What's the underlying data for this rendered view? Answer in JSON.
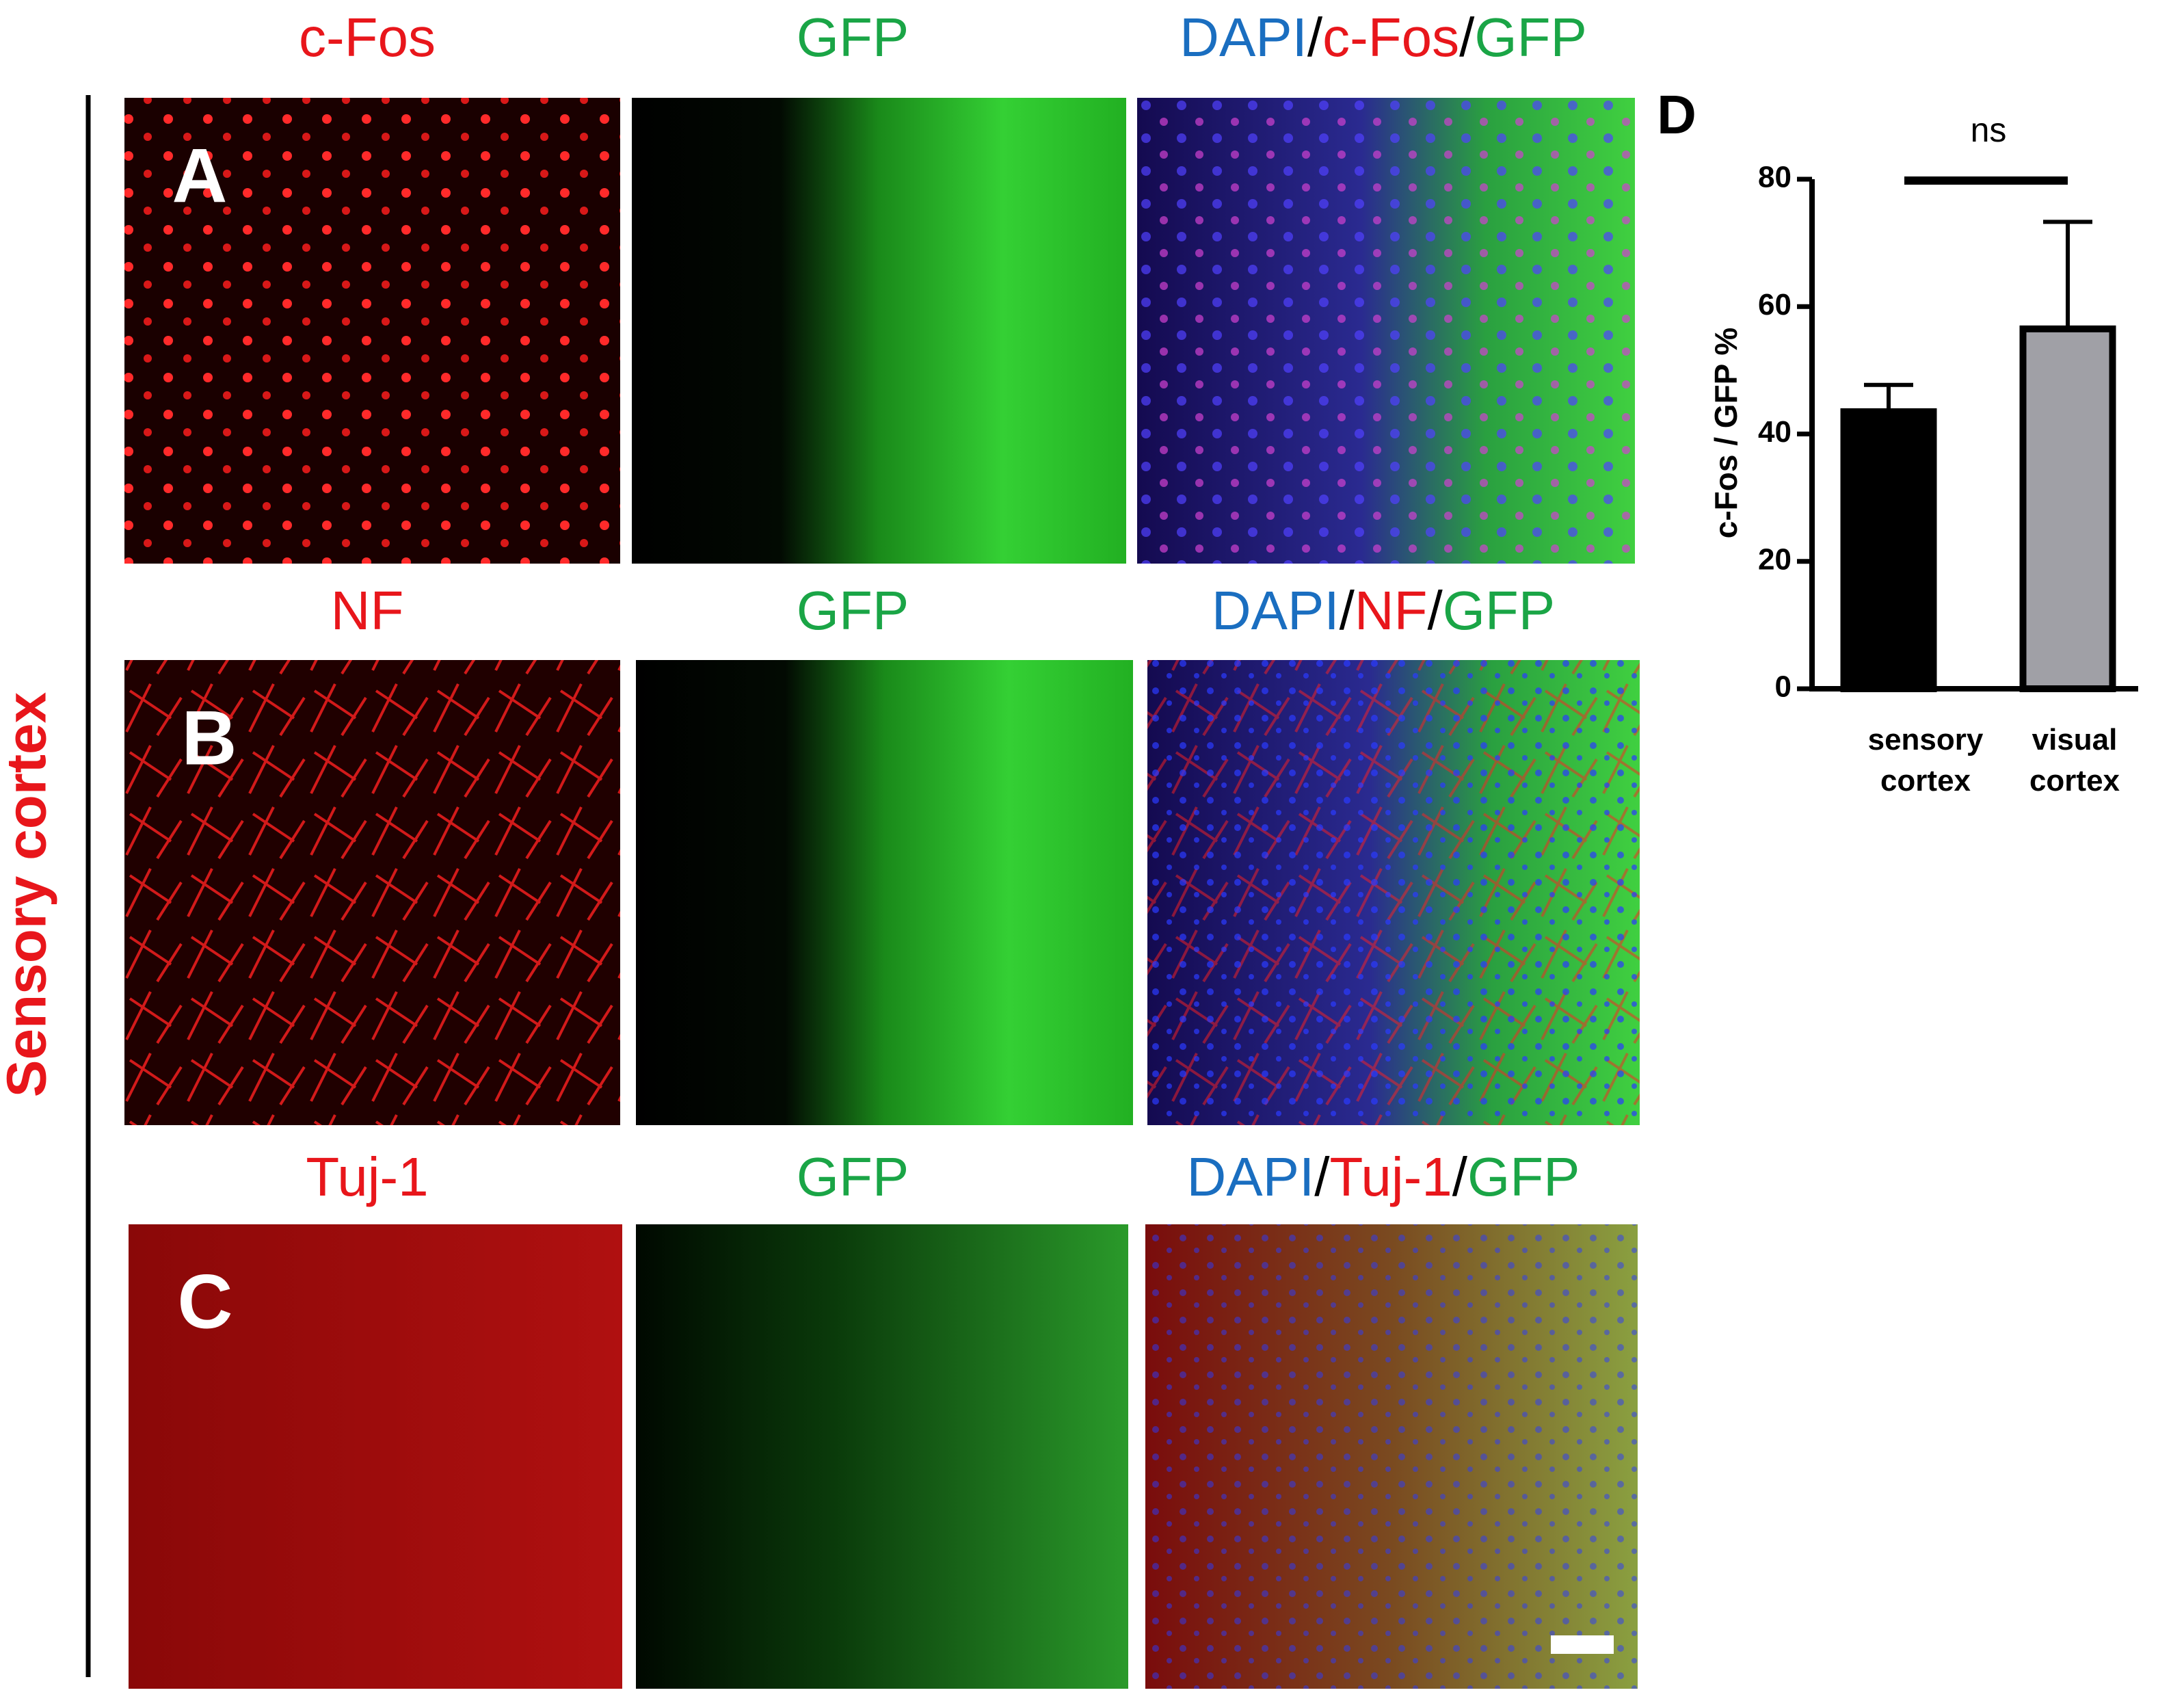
{
  "side_label": "Sensory cortex",
  "rows": [
    {
      "panel": "A",
      "headers": [
        [
          "c-Fos"
        ],
        [
          "GFP"
        ],
        [
          "DAPI",
          "/",
          "c-Fos",
          "/",
          "GFP"
        ]
      ]
    },
    {
      "panel": "B",
      "headers": [
        [
          "NF"
        ],
        [
          "GFP"
        ],
        [
          "DAPI",
          "/",
          "NF",
          "/",
          "GFP"
        ]
      ]
    },
    {
      "panel": "C",
      "headers": [
        [
          "Tuj-1"
        ],
        [
          "GFP"
        ],
        [
          "DAPI",
          "/",
          "Tuj-1",
          "/",
          "GFP"
        ]
      ]
    }
  ],
  "chart_data": {
    "type": "bar",
    "panel": "D",
    "annotation": "ns",
    "y_label": "c-Fos / GFP %",
    "categories": [
      "sensory cortex",
      "visual cortex"
    ],
    "values": [
      43.5,
      56.5
    ],
    "errors": [
      4.2,
      16.8
    ],
    "colors": [
      "#000000",
      "#a0a0a6"
    ],
    "ylim": [
      0,
      80
    ],
    "yticks": [
      0,
      20,
      40,
      60,
      80
    ]
  }
}
